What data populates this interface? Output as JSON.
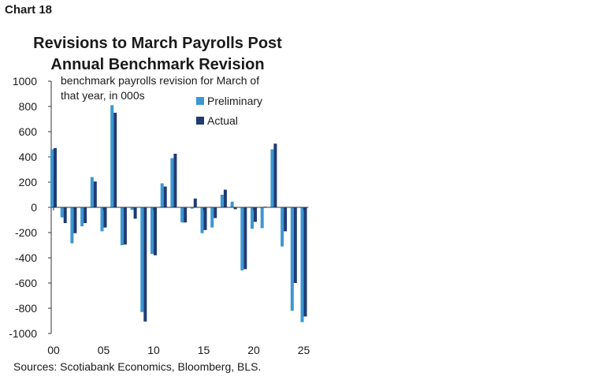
{
  "chart_label": "Chart 18",
  "source": "Sources: Scotiabank Economics, Bloomberg, BLS.",
  "chart_data": {
    "type": "bar",
    "title": "Revisions to March Payrolls Post Annual Benchmark Revision",
    "title_lines": [
      "Revisions to March Payrolls Post",
      "Annual Benchmark Revision"
    ],
    "ylabel_lines": [
      "benchmark payrolls revision for March of",
      "that year, in 000s"
    ],
    "xlabel": "",
    "ylim": [
      -1000,
      1000
    ],
    "yticks": [
      1000,
      800,
      600,
      400,
      200,
      0,
      -200,
      -400,
      -600,
      -800,
      -1000
    ],
    "categories": [
      "00",
      "01",
      "02",
      "03",
      "04",
      "05",
      "06",
      "07",
      "08",
      "09",
      "10",
      "11",
      "12",
      "13",
      "14",
      "15",
      "16",
      "17",
      "18",
      "19",
      "20",
      "21",
      "22",
      "23",
      "24",
      "25"
    ],
    "x_tick_labels": {
      "00": "00",
      "05": "05",
      "10": "10",
      "15": "15",
      "20": "20",
      "25": "25"
    },
    "grid": false,
    "legend_position": "top-right",
    "series": [
      {
        "name": "Preliminary",
        "color": "#3b97d3",
        "values": [
          460,
          -80,
          -285,
          -150,
          240,
          -190,
          810,
          -300,
          -20,
          -830,
          -370,
          190,
          390,
          -120,
          -10,
          -205,
          -160,
          100,
          45,
          -500,
          -170,
          -165,
          460,
          -310,
          -820,
          -910
        ]
      },
      {
        "name": "Actual",
        "color": "#1f3b73",
        "values": [
          470,
          -125,
          -205,
          -125,
          205,
          -160,
          750,
          -295,
          -90,
          -905,
          -380,
          165,
          425,
          -120,
          70,
          -180,
          -85,
          140,
          -15,
          -490,
          -115,
          5,
          505,
          -190,
          -600,
          -865
        ]
      }
    ]
  }
}
